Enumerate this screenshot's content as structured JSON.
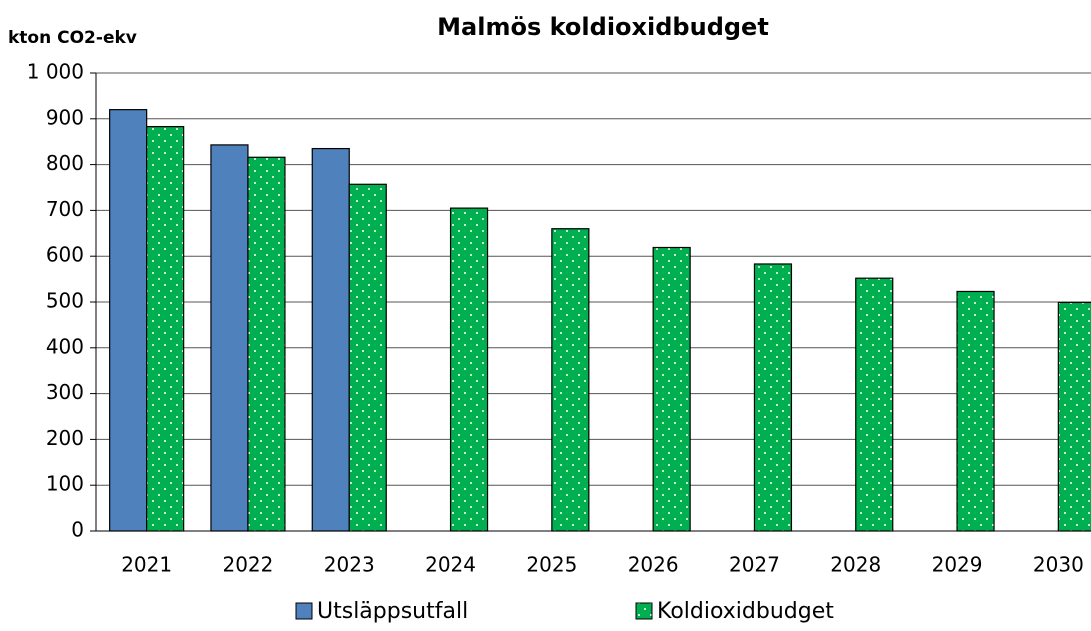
{
  "chart_data": {
    "type": "bar",
    "title": "Malmös koldioxidbudget",
    "y_label": "kton CO2-ekv",
    "categories": [
      "2021",
      "2022",
      "2023",
      "2024",
      "2025",
      "2026",
      "2027",
      "2028",
      "2029",
      "2030"
    ],
    "series": [
      {
        "name": "Utsläppsutfall",
        "color": "#4f81bd",
        "values": [
          920,
          843,
          835,
          null,
          null,
          null,
          null,
          null,
          null,
          null
        ]
      },
      {
        "name": "Koldioxidbudget",
        "color": "#00b050",
        "values": [
          883,
          816,
          757,
          705,
          660,
          619,
          583,
          552,
          523,
          499
        ]
      }
    ],
    "ylim": [
      0,
      1000
    ],
    "yticks": [
      0,
      100,
      200,
      300,
      400,
      500,
      600,
      700,
      800,
      900,
      {
        "value": 1000,
        "label": "1 000"
      }
    ],
    "grid": true,
    "legend": "bottom"
  }
}
